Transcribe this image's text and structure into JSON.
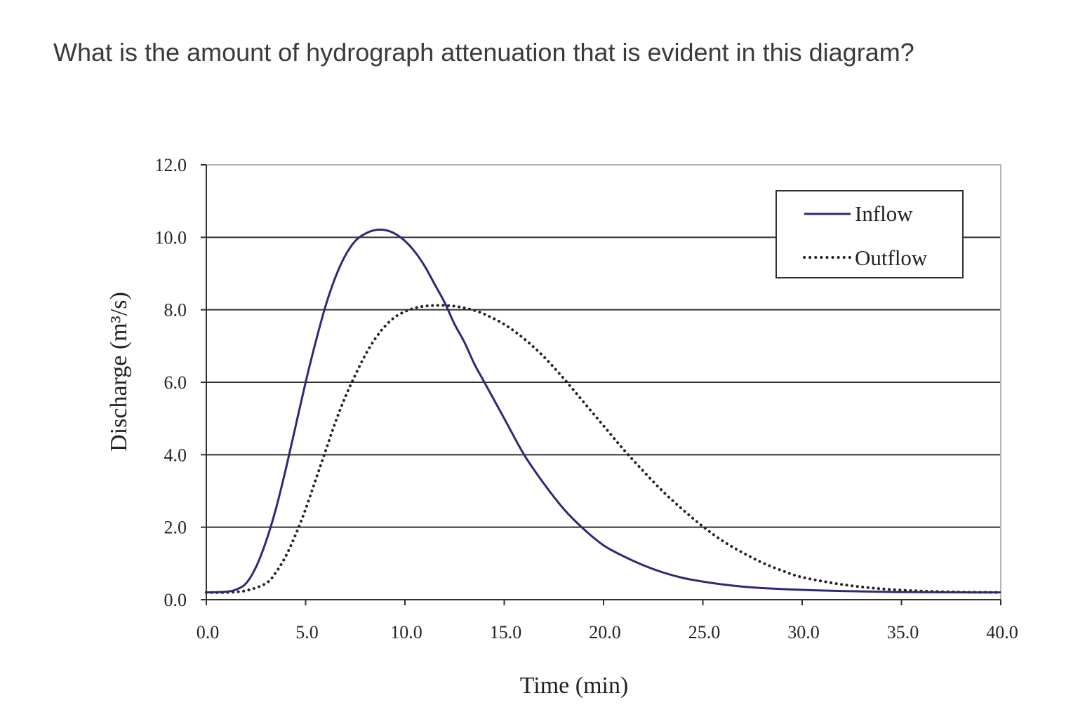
{
  "question": "What is the amount of hydrograph attenuation that is evident in this diagram?",
  "chart_data": {
    "type": "line",
    "xlabel": "Time (min)",
    "ylabel": "Discharge (m³/s)",
    "xlim": [
      0,
      40
    ],
    "ylim": [
      0,
      12
    ],
    "xticks": [
      "0.0",
      "5.0",
      "10.0",
      "15.0",
      "20.0",
      "25.0",
      "30.0",
      "35.0",
      "40.0"
    ],
    "yticks": [
      "0.0",
      "2.0",
      "4.0",
      "6.0",
      "8.0",
      "10.0",
      "12.0"
    ],
    "grid": "horizontal",
    "legend_position": "top-right",
    "series": [
      {
        "name": "Inflow",
        "style": "solid",
        "color": "#2b2a78",
        "x": [
          0,
          1,
          1.5,
          2,
          2.5,
          3,
          3.5,
          4,
          4.5,
          5,
          5.5,
          6,
          6.5,
          7,
          7.5,
          8,
          8.5,
          9,
          9.5,
          10,
          10.5,
          11,
          11.5,
          12,
          12.5,
          13,
          13.5,
          14,
          15,
          16,
          17,
          18,
          19,
          20,
          21,
          22,
          23,
          24,
          25,
          26,
          27,
          28,
          30,
          32,
          35,
          40
        ],
        "y": [
          0.2,
          0.22,
          0.28,
          0.45,
          0.9,
          1.6,
          2.5,
          3.6,
          4.8,
          6.0,
          7.1,
          8.1,
          8.9,
          9.5,
          9.9,
          10.1,
          10.2,
          10.2,
          10.1,
          9.9,
          9.6,
          9.2,
          8.7,
          8.2,
          7.6,
          7.1,
          6.5,
          6.0,
          5.0,
          4.0,
          3.2,
          2.5,
          1.95,
          1.5,
          1.2,
          0.95,
          0.75,
          0.6,
          0.5,
          0.42,
          0.36,
          0.32,
          0.27,
          0.24,
          0.21,
          0.2
        ]
      },
      {
        "name": "Outflow",
        "style": "dotted",
        "color": "#222222",
        "x": [
          0,
          1,
          2,
          3,
          3.5,
          4,
          4.5,
          5,
          5.5,
          6,
          6.5,
          7,
          7.5,
          8,
          8.5,
          9,
          9.5,
          10,
          10.5,
          11,
          11.5,
          12,
          12.5,
          13,
          13.5,
          14,
          15,
          16,
          17,
          18,
          19,
          20,
          21,
          22,
          23,
          24,
          25,
          26,
          27,
          28,
          29,
          30,
          32,
          34,
          36,
          38,
          40
        ],
        "y": [
          0.2,
          0.2,
          0.25,
          0.45,
          0.75,
          1.2,
          1.8,
          2.5,
          3.3,
          4.1,
          4.9,
          5.6,
          6.2,
          6.75,
          7.2,
          7.55,
          7.8,
          7.95,
          8.05,
          8.1,
          8.12,
          8.12,
          8.1,
          8.05,
          7.98,
          7.88,
          7.6,
          7.2,
          6.7,
          6.1,
          5.45,
          4.8,
          4.15,
          3.55,
          2.98,
          2.48,
          2.02,
          1.62,
          1.3,
          1.02,
          0.8,
          0.62,
          0.42,
          0.3,
          0.24,
          0.21,
          0.2
        ]
      }
    ]
  }
}
